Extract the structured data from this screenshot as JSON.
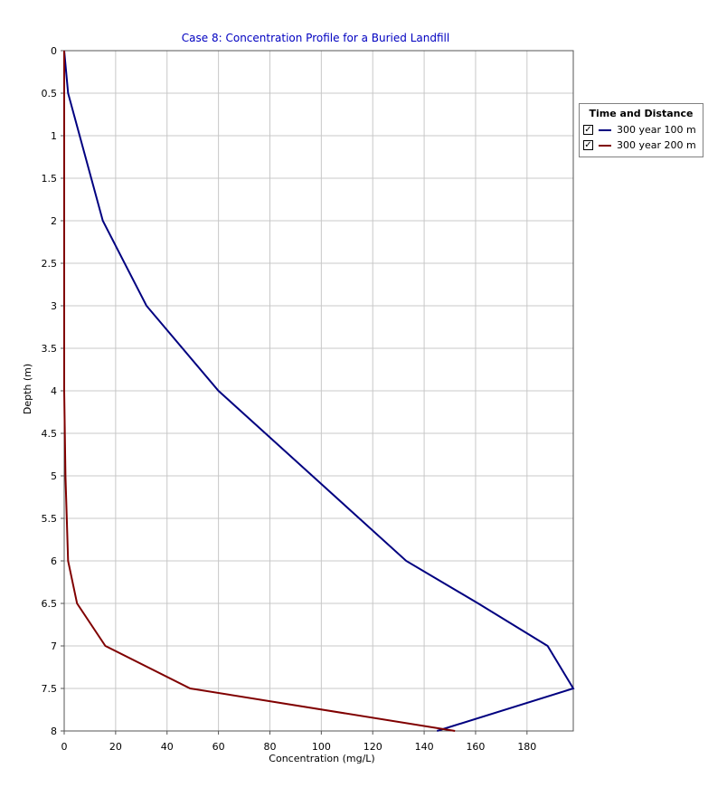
{
  "chart_data": {
    "type": "line",
    "title": "Case 8: Concentration Profile for a Buried Landfill",
    "xlabel": "Concentration (mg/L)",
    "ylabel": "Depth (m)",
    "xlim": [
      0,
      198
    ],
    "ylim": [
      0,
      8
    ],
    "y_inverted": true,
    "grid": true,
    "x_ticks": [
      "0",
      "20",
      "40",
      "60",
      "80",
      "100",
      "120",
      "140",
      "160",
      "180"
    ],
    "y_ticks": [
      "0",
      "0.5",
      "1",
      "1.5",
      "2",
      "2.5",
      "3",
      "3.5",
      "4",
      "4.5",
      "5",
      "5.5",
      "6",
      "6.5",
      "7",
      "7.5",
      "8"
    ],
    "legend": {
      "title": "Time and Distance",
      "placement": "right"
    },
    "series": [
      {
        "name": "300 year  100 m",
        "color": "#000080",
        "points": [
          [
            0,
            0
          ],
          [
            1.5,
            0.5
          ],
          [
            15,
            2
          ],
          [
            32,
            3
          ],
          [
            60,
            4
          ],
          [
            133,
            6
          ],
          [
            161,
            6.5
          ],
          [
            188,
            7
          ],
          [
            198,
            7.5
          ],
          [
            145,
            8
          ]
        ]
      },
      {
        "name": "300 year  200 m",
        "color": "#800000",
        "points": [
          [
            0,
            0
          ],
          [
            0,
            4
          ],
          [
            0.5,
            5
          ],
          [
            1.5,
            6
          ],
          [
            5,
            6.5
          ],
          [
            16,
            7
          ],
          [
            49,
            7.5
          ],
          [
            152,
            8
          ]
        ]
      }
    ]
  }
}
